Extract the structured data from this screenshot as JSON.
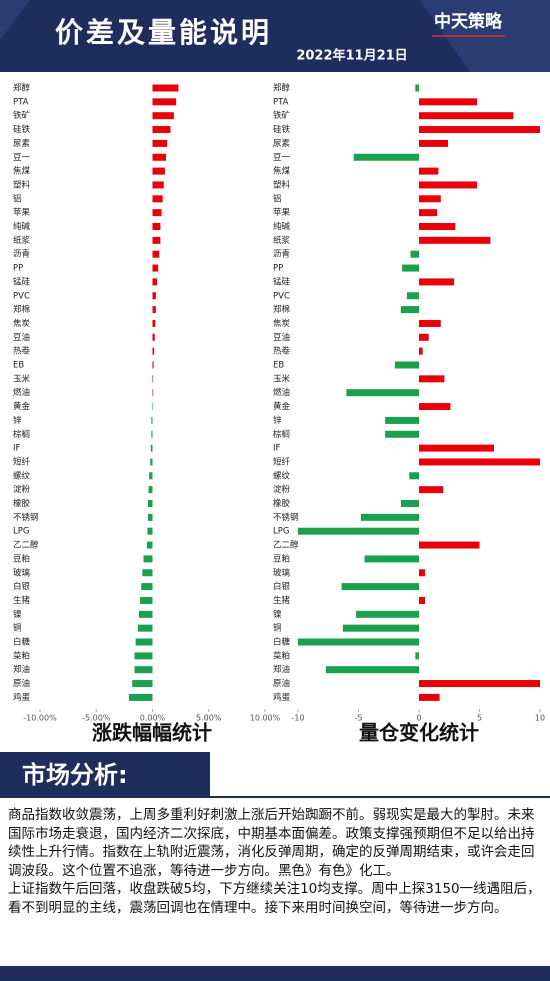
{
  "header": {
    "title": "价差及量能说明",
    "logo": "中天策略",
    "date": "2022年11月21日"
  },
  "chart_data": [
    {
      "type": "bar",
      "orientation": "horizontal",
      "title": "涨跌幅幅统计",
      "categories": [
        "郑醇",
        "PTA",
        "铁矿",
        "硅铁",
        "尿素",
        "豆一",
        "焦煤",
        "塑料",
        "铝",
        "苹果",
        "纯碱",
        "纸浆",
        "沥青",
        "PP",
        "锰硅",
        "PVC",
        "郑棉",
        "焦炭",
        "豆油",
        "热卷",
        "EB",
        "玉米",
        "燃油",
        "黄金",
        "锌",
        "棕榈",
        "IF",
        "短纤",
        "螺纹",
        "淀粉",
        "橡胶",
        "不锈钢",
        "LPG",
        "乙二醇",
        "豆粕",
        "玻璃",
        "白银",
        "生猪",
        "镍",
        "铜",
        "白糖",
        "菜粕",
        "郑油",
        "原油",
        "鸡蛋"
      ],
      "values": [
        2.3,
        2.1,
        1.9,
        1.6,
        1.3,
        1.2,
        1.1,
        1.0,
        0.9,
        0.8,
        0.7,
        0.7,
        0.6,
        0.5,
        0.4,
        0.3,
        0.3,
        0.25,
        0.2,
        0.15,
        0.1,
        0.02,
        0,
        -0.05,
        -0.1,
        -0.1,
        -0.15,
        -0.2,
        -0.3,
        -0.35,
        -0.4,
        -0.4,
        -0.45,
        -0.5,
        -0.8,
        -0.9,
        -1.0,
        -1.1,
        -1.2,
        -1.3,
        -1.5,
        -1.6,
        -1.6,
        -1.8,
        -2.1
      ],
      "positive_color": "#e8000b",
      "negative_color": "#1aa04f",
      "xlim": [
        -10,
        10
      ],
      "xticks": [
        {
          "value": -10,
          "label": "-10.00%"
        },
        {
          "value": -5,
          "label": "-5.00%"
        },
        {
          "value": 0,
          "label": "0.00%"
        },
        {
          "value": 5,
          "label": "5.00%"
        },
        {
          "value": 10,
          "label": "10.00%"
        }
      ]
    },
    {
      "type": "bar",
      "orientation": "horizontal",
      "title": "量仓变化统计",
      "categories": [
        "郑醇",
        "PTA",
        "铁矿",
        "硅铁",
        "尿素",
        "豆一",
        "焦煤",
        "塑料",
        "铝",
        "苹果",
        "纯碱",
        "纸浆",
        "沥青",
        "PP",
        "锰硅",
        "PVC",
        "郑棉",
        "焦炭",
        "豆油",
        "热卷",
        "EB",
        "玉米",
        "燃油",
        "黄金",
        "锌",
        "棕榈",
        "IF",
        "短纤",
        "螺纹",
        "淀粉",
        "橡胶",
        "不锈钢",
        "LPG",
        "乙二醇",
        "豆粕",
        "玻璃",
        "白银",
        "生猪",
        "镍",
        "铜",
        "白糖",
        "菜粕",
        "郑油",
        "原油",
        "鸡蛋"
      ],
      "values": [
        -0.3,
        4.8,
        7.8,
        10,
        2.4,
        -5.4,
        1.6,
        4.8,
        1.8,
        1.5,
        3.0,
        5.9,
        -0.7,
        -1.4,
        2.9,
        -1.0,
        -1.5,
        1.8,
        0.8,
        0.3,
        -2.0,
        2.1,
        -6.0,
        2.6,
        -2.8,
        -2.8,
        6.2,
        10,
        -0.8,
        2.0,
        -1.5,
        -4.8,
        -10,
        5.0,
        -4.5,
        0.5,
        -6.4,
        0.5,
        -5.2,
        -6.3,
        -10,
        -0.3,
        -7.7,
        10,
        1.7
      ],
      "positive_color": "#e8000b",
      "negative_color": "#1aa04f",
      "xlim": [
        -10,
        10
      ],
      "xticks": [
        -10,
        -5,
        0,
        5,
        10
      ]
    }
  ],
  "analysis": {
    "title": "市场分析:",
    "paragraphs": [
      "商品指数收敛震荡，上周多重利好刺激上涨后开始踟蹰不前。弱现实是最大的掣肘。未来国际市场走衰退，国内经济二次探底，中期基本面偏差。政策支撑强预期但不足以给出持续性上升行情。指数在上轨附近震荡，消化反弹周期，确定的反弹周期结束，或许会走回调波段。这个位置不追涨，等待进一步方向。黑色》有色》化工。",
      "上证指数午后回落，收盘跌破5均，下方继续关注10均支撑。周中上探3150一线遇阻后，看不到明显的主线，震荡回调也在情理中。接下来用时间换空间，等待进一步方向。"
    ]
  }
}
